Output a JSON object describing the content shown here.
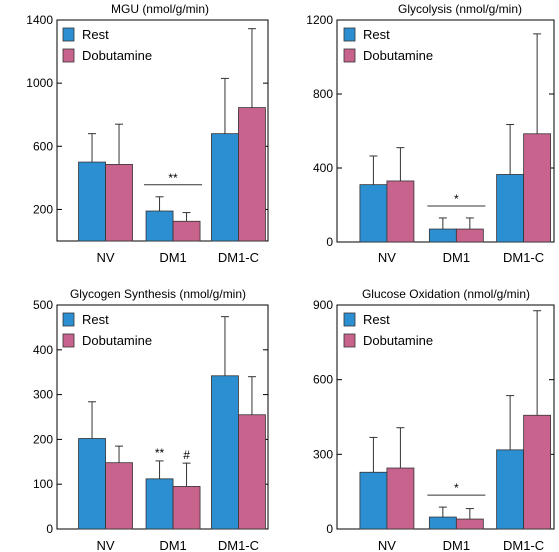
{
  "chart_data": [
    {
      "type": "bar",
      "title": "MGU (nmol/g/min)",
      "categories": [
        "NV",
        "DM1",
        "DM1-C"
      ],
      "ylim": [
        0,
        1400
      ],
      "yticks": [
        200,
        600,
        1000,
        1400
      ],
      "series": [
        {
          "name": "Rest",
          "values": [
            500,
            190,
            680
          ],
          "errors": [
            180,
            90,
            350
          ]
        },
        {
          "name": "Dobutamine",
          "values": [
            485,
            125,
            845
          ],
          "errors": [
            255,
            55,
            500
          ]
        }
      ],
      "annotations": [
        {
          "text": "**",
          "category": 1
        }
      ]
    },
    {
      "type": "bar",
      "title": "Glycolysis (nmol/g/min)",
      "categories": [
        "NV",
        "DM1",
        "DM1-C"
      ],
      "ylim": [
        0,
        1200
      ],
      "yticks": [
        0,
        400,
        800,
        1200
      ],
      "series": [
        {
          "name": "Rest",
          "values": [
            310,
            70,
            365
          ],
          "errors": [
            155,
            60,
            270
          ]
        },
        {
          "name": "Dobutamine",
          "values": [
            330,
            70,
            585
          ],
          "errors": [
            180,
            60,
            540
          ]
        }
      ],
      "annotations": [
        {
          "text": "*",
          "category": 1
        }
      ]
    },
    {
      "type": "bar",
      "title": "Glycogen Synthesis (nmol/g/min)",
      "categories": [
        "NV",
        "DM1",
        "DM1-C"
      ],
      "ylim": [
        0,
        500
      ],
      "yticks": [
        0,
        100,
        200,
        300,
        400,
        500
      ],
      "series": [
        {
          "name": "Rest",
          "values": [
            202,
            112,
            342
          ],
          "errors": [
            82,
            40,
            132
          ]
        },
        {
          "name": "Dobutamine",
          "values": [
            148,
            95,
            255
          ],
          "errors": [
            37,
            52,
            85
          ]
        }
      ],
      "annotations": [
        {
          "text": "**",
          "category": 1,
          "series": 0
        },
        {
          "text": "#",
          "category": 1,
          "series": 1
        }
      ]
    },
    {
      "type": "bar",
      "title": "Glucose Oxidation (nmol/g/min)",
      "categories": [
        "NV",
        "DM1",
        "DM1-C"
      ],
      "ylim": [
        0,
        900
      ],
      "yticks": [
        0,
        300,
        600,
        900
      ],
      "series": [
        {
          "name": "Rest",
          "values": [
            228,
            48,
            318
          ],
          "errors": [
            140,
            40,
            218
          ]
        },
        {
          "name": "Dobutamine",
          "values": [
            245,
            40,
            457
          ],
          "errors": [
            162,
            42,
            420
          ]
        }
      ],
      "annotations": [
        {
          "text": "*",
          "category": 1
        }
      ]
    }
  ],
  "legend": [
    "Rest",
    "Dobutamine"
  ],
  "colors": {
    "Rest": "#2b8fd1",
    "Dobutamine": "#c8638e"
  }
}
